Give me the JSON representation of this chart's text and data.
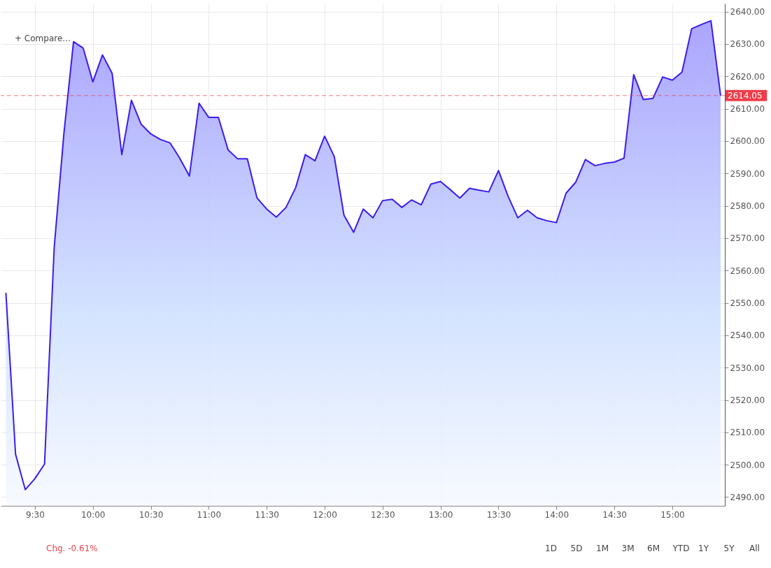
{
  "chart_data": {
    "type": "area",
    "x": [
      9.25,
      9.3333,
      9.4167,
      9.5,
      9.5833,
      9.6667,
      9.75,
      9.8333,
      9.9167,
      10,
      10.0833,
      10.1667,
      10.25,
      10.3333,
      10.4167,
      10.5,
      10.5833,
      10.6667,
      10.75,
      10.8333,
      10.9167,
      11,
      11.0833,
      11.1667,
      11.25,
      11.3333,
      11.4167,
      11.5,
      11.5833,
      11.6667,
      11.75,
      11.8333,
      11.9167,
      12,
      12.0833,
      12.1667,
      12.25,
      12.3333,
      12.4167,
      12.5,
      12.5833,
      12.6667,
      12.75,
      12.8333,
      12.9167,
      13,
      13.0833,
      13.1667,
      13.25,
      13.3333,
      13.4167,
      13.5,
      13.5833,
      13.6667,
      13.75,
      13.8333,
      13.9167,
      14,
      14.0833,
      14.1667,
      14.25,
      14.3333,
      14.4167,
      14.5,
      14.5833,
      14.6667,
      14.75,
      14.8333,
      14.9167,
      15,
      15.0833,
      15.1667,
      15.25,
      15.3333,
      15.4167
    ],
    "series": [
      {
        "color": "#3a1cf0",
        "values": [
          2553.1,
          2503.2,
          2492.3,
          2495.7,
          2500.2,
          2567.1,
          2602.2,
          2630.7,
          2628.7,
          2618.3,
          2626.6,
          2620.9,
          2595.8,
          2612.6,
          2605.2,
          2602.2,
          2600.5,
          2599.4,
          2594.7,
          2589.2,
          2611.7,
          2607.3,
          2607.3,
          2597.3,
          2594.5,
          2594.5,
          2582.4,
          2579.0,
          2576.5,
          2579.5,
          2585.6,
          2595.8,
          2593.9,
          2601.5,
          2595.2,
          2577.1,
          2571.8,
          2579.0,
          2576.3,
          2581.6,
          2582.0,
          2579.5,
          2581.8,
          2580.3,
          2586.7,
          2587.5,
          2585.0,
          2582.4,
          2585.4,
          2584.8,
          2584.3,
          2590.9,
          2582.9,
          2576.3,
          2578.6,
          2576.3,
          2575.4,
          2574.8,
          2583.9,
          2587.3,
          2594.3,
          2592.4,
          2593.1,
          2593.5,
          2594.7,
          2620.5,
          2612.8,
          2613.2,
          2619.8,
          2618.8,
          2621.3,
          2634.7,
          2636.0,
          2637.2,
          2614.05
        ]
      }
    ],
    "xlim": [
      9.205,
      15.453
    ],
    "xticks": [
      {
        "value": 9.5,
        "label": "9:30"
      },
      {
        "value": 10,
        "label": "10:00"
      },
      {
        "value": 10.5,
        "label": "10:30"
      },
      {
        "value": 11,
        "label": "11:00"
      },
      {
        "value": 11.5,
        "label": "11:30"
      },
      {
        "value": 12,
        "label": "12:00"
      },
      {
        "value": 12.5,
        "label": "12:30"
      },
      {
        "value": 13,
        "label": "13:00"
      },
      {
        "value": 13.5,
        "label": "13:30"
      },
      {
        "value": 14,
        "label": "14:00"
      },
      {
        "value": 14.5,
        "label": "14:30"
      },
      {
        "value": 15,
        "label": "15:00"
      }
    ],
    "ylim": [
      2487.3,
      2642.5
    ],
    "yticks": [
      {
        "value": 2490,
        "label": "2490.00"
      },
      {
        "value": 2500,
        "label": "2500.00"
      },
      {
        "value": 2510,
        "label": "2510.00"
      },
      {
        "value": 2520,
        "label": "2520.00"
      },
      {
        "value": 2530,
        "label": "2530.00"
      },
      {
        "value": 2540,
        "label": "2540.00"
      },
      {
        "value": 2550,
        "label": "2550.00"
      },
      {
        "value": 2560,
        "label": "2560.00"
      },
      {
        "value": 2570,
        "label": "2570.00"
      },
      {
        "value": 2580,
        "label": "2580.00"
      },
      {
        "value": 2590,
        "label": "2590.00"
      },
      {
        "value": 2600,
        "label": "2600.00"
      },
      {
        "value": 2610,
        "label": "2610.00"
      },
      {
        "value": 2620,
        "label": "2620.00"
      },
      {
        "value": 2630,
        "label": "2630.00"
      },
      {
        "value": 2640,
        "label": "2640.00"
      }
    ],
    "ref_lines": [
      {
        "axis": "y",
        "value": 2614.05,
        "label": "2614.05",
        "color": "#f03c4a",
        "line_style": "dashed"
      }
    ],
    "annotations": [
      "+ Compare...",
      "Chg. -0.61%",
      "1D",
      "5D",
      "1M",
      "3M",
      "6M",
      "YTD",
      "1Y",
      "5Y",
      "All"
    ],
    "grid": true,
    "marker": "none",
    "line_style": "solid"
  }
}
